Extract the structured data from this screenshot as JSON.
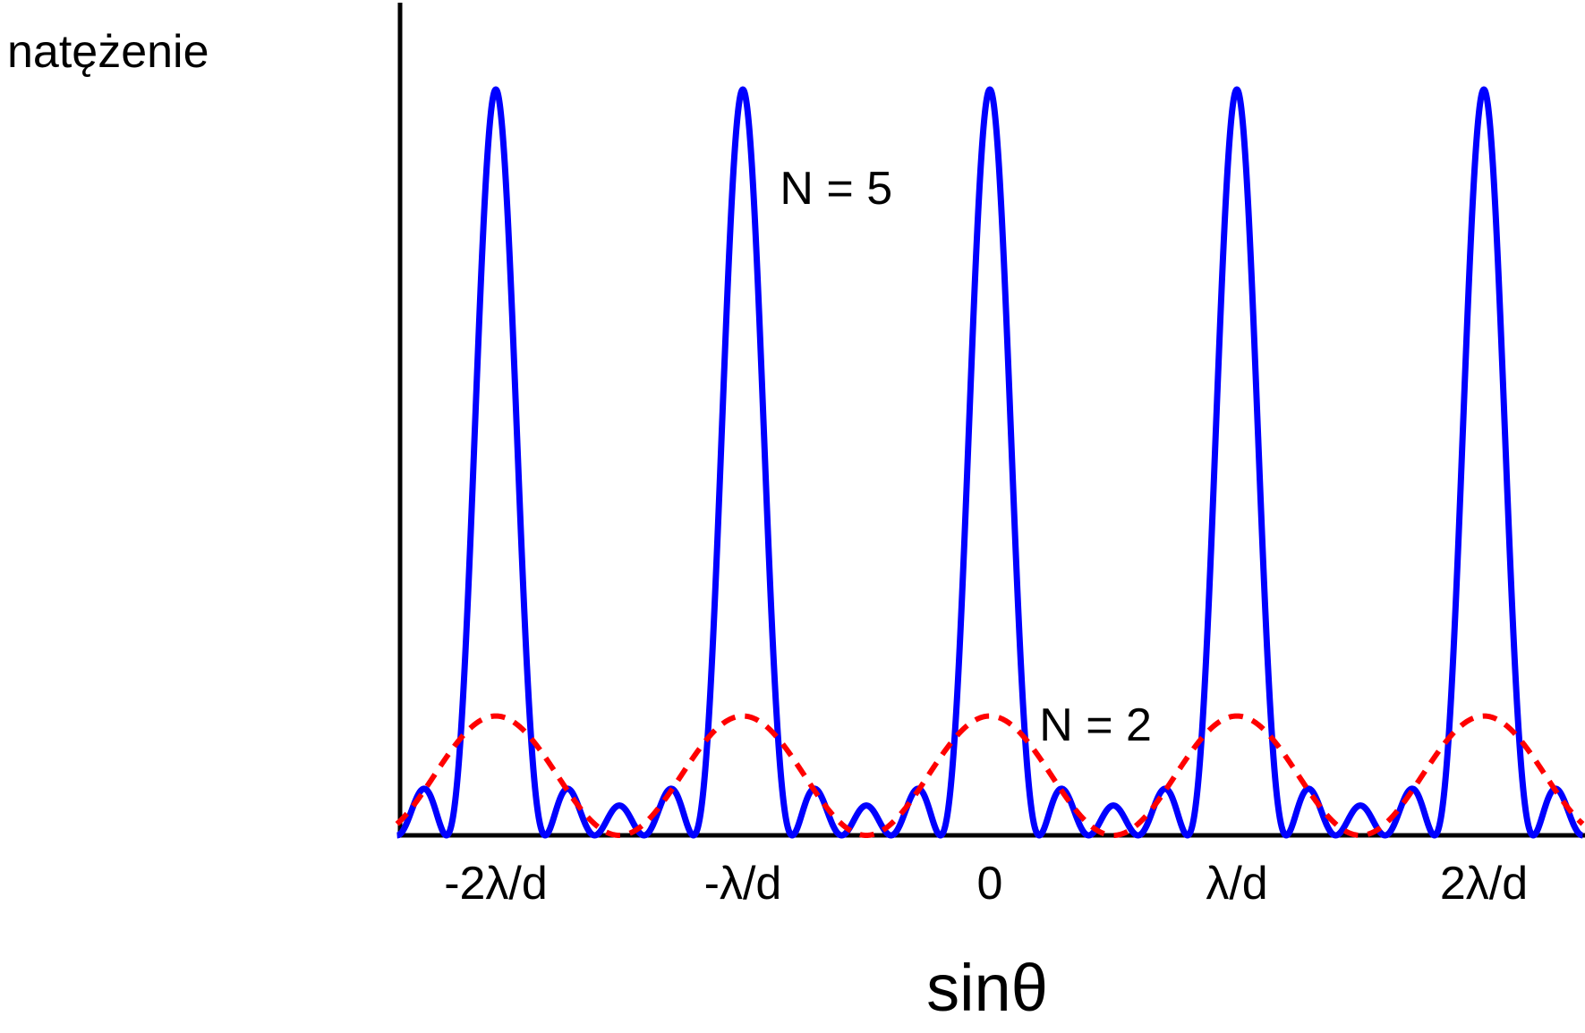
{
  "chart_data": {
    "type": "line",
    "title": "",
    "ylabel": "natężenie",
    "xlabel": "sinθ",
    "x_unit": "λ/d",
    "xlim": [
      -2.4,
      2.4
    ],
    "ylim": [
      0,
      28
    ],
    "tick_values": [
      -2,
      -1,
      0,
      1,
      2
    ],
    "tick_labels": [
      "-2λ/d",
      "-λ/d",
      "0",
      "λ/d",
      "2λ/d"
    ],
    "grid": false,
    "legend": "none",
    "series": [
      {
        "N": 5,
        "label": "N = 5",
        "peak_intensity": 25,
        "color": "#0000ff",
        "style": "solid",
        "label_x": 1.35,
        "label_y": 25
      },
      {
        "N": 2,
        "label": "N = 2",
        "peak_intensity": 4,
        "color": "#ff0000",
        "style": "dashed",
        "label_x": 0.24,
        "label_y": 4
      }
    ]
  }
}
